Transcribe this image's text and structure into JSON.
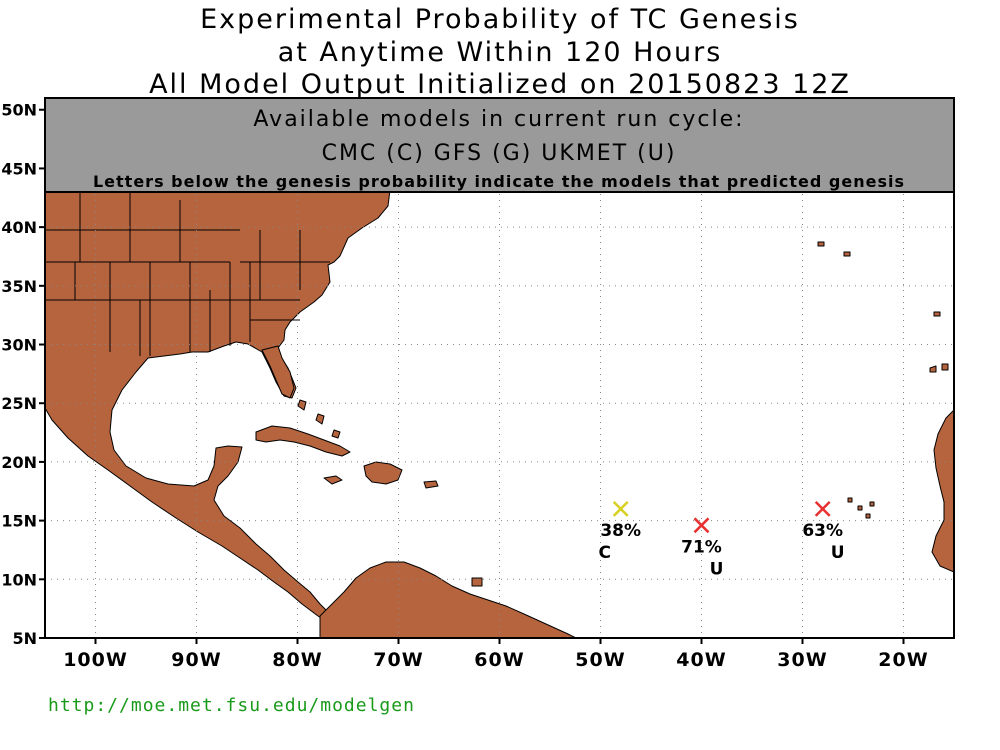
{
  "title": {
    "line1": "Experimental Probability of TC Genesis",
    "line2": "at Anytime Within 120 Hours",
    "line3": "All Model Output Initialized on 20150823 12Z"
  },
  "banner": {
    "line1": "Available models in current run cycle:",
    "line2": "CMC (C) GFS (G)  UKMET (U)",
    "line3": "Letters below the genesis probability indicate the models that predicted genesis",
    "color": "#9a9a9a"
  },
  "map": {
    "lon_range": [
      -105,
      -15
    ],
    "lat_range": [
      5,
      51
    ],
    "lat_ticks": [
      {
        "value": 5,
        "label": "5N"
      },
      {
        "value": 10,
        "label": "10N"
      },
      {
        "value": 15,
        "label": "15N"
      },
      {
        "value": 20,
        "label": "20N"
      },
      {
        "value": 25,
        "label": "25N"
      },
      {
        "value": 30,
        "label": "30N"
      },
      {
        "value": 35,
        "label": "35N"
      },
      {
        "value": 40,
        "label": "40N"
      },
      {
        "value": 45,
        "label": "45N"
      },
      {
        "value": 50,
        "label": "50N"
      }
    ],
    "lon_ticks": [
      {
        "value": -100,
        "label": "100W"
      },
      {
        "value": -90,
        "label": "90W"
      },
      {
        "value": -80,
        "label": "80W"
      },
      {
        "value": -70,
        "label": "70W"
      },
      {
        "value": -60,
        "label": "60W"
      },
      {
        "value": -50,
        "label": "50W"
      },
      {
        "value": -40,
        "label": "40W"
      },
      {
        "value": -30,
        "label": "30W"
      },
      {
        "value": -20,
        "label": "20W"
      }
    ],
    "grid": true,
    "land_color": "#b5643e",
    "ocean_color": "#ffffff"
  },
  "genesis_points": [
    {
      "lon": -48,
      "lat": 16.0,
      "probability": "38%",
      "models": "C",
      "color": "#d8d020"
    },
    {
      "lon": -40,
      "lat": 14.6,
      "probability": "71%",
      "models": "U",
      "color": "#e83030"
    },
    {
      "lon": -28,
      "lat": 16.0,
      "probability": "63%",
      "models": "U",
      "color": "#e83030"
    }
  ],
  "footer": {
    "url": "http://moe.met.fsu.edu/modelgen"
  }
}
